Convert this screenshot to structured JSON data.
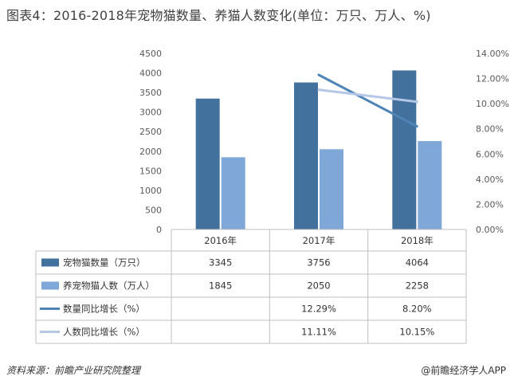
{
  "title": "图表4：2016-2018年宠物猫数量、养猫人数变化(单位：万只、万人、%)",
  "footer": {
    "source": "资料来源：前瞻产业研究院整理",
    "credit": "@前瞻经济学人APP"
  },
  "colors": {
    "cat_count": "#41719C",
    "owners": "#7FA7D8",
    "cat_growth": "#4F84B8",
    "owner_growth": "#B4C7E7"
  },
  "chart_data": {
    "type": "bar",
    "categories": [
      "2016年",
      "2017年",
      "2018年"
    ],
    "ylim": [
      0,
      4500
    ],
    "yticks": [
      "0",
      "500",
      "1000",
      "1500",
      "2000",
      "2500",
      "3000",
      "3500",
      "4000",
      "4500"
    ],
    "y2lim": [
      0,
      14
    ],
    "y2ticks": [
      "0.00%",
      "2.00%",
      "4.00%",
      "6.00%",
      "8.00%",
      "10.00%",
      "12.00%",
      "14.00%"
    ],
    "series": [
      {
        "name": "宠物猫数量（万只）",
        "kind": "bar",
        "axis": "left",
        "values": [
          3345,
          3756,
          4064
        ],
        "labels": [
          "3345",
          "3756",
          "4064"
        ]
      },
      {
        "name": "养宠物猫人数（万人）",
        "kind": "bar",
        "axis": "left",
        "values": [
          1845,
          2050,
          2258
        ],
        "labels": [
          "1845",
          "2050",
          "2258"
        ]
      },
      {
        "name": "数量同比增长（%）",
        "kind": "line",
        "axis": "right",
        "values": [
          null,
          12.29,
          8.2
        ],
        "labels": [
          "",
          "12.29%",
          "8.20%"
        ]
      },
      {
        "name": "人数同比增长（%）",
        "kind": "line",
        "axis": "right",
        "values": [
          null,
          11.11,
          10.15
        ],
        "labels": [
          "",
          "11.11%",
          "10.15%"
        ]
      }
    ]
  }
}
